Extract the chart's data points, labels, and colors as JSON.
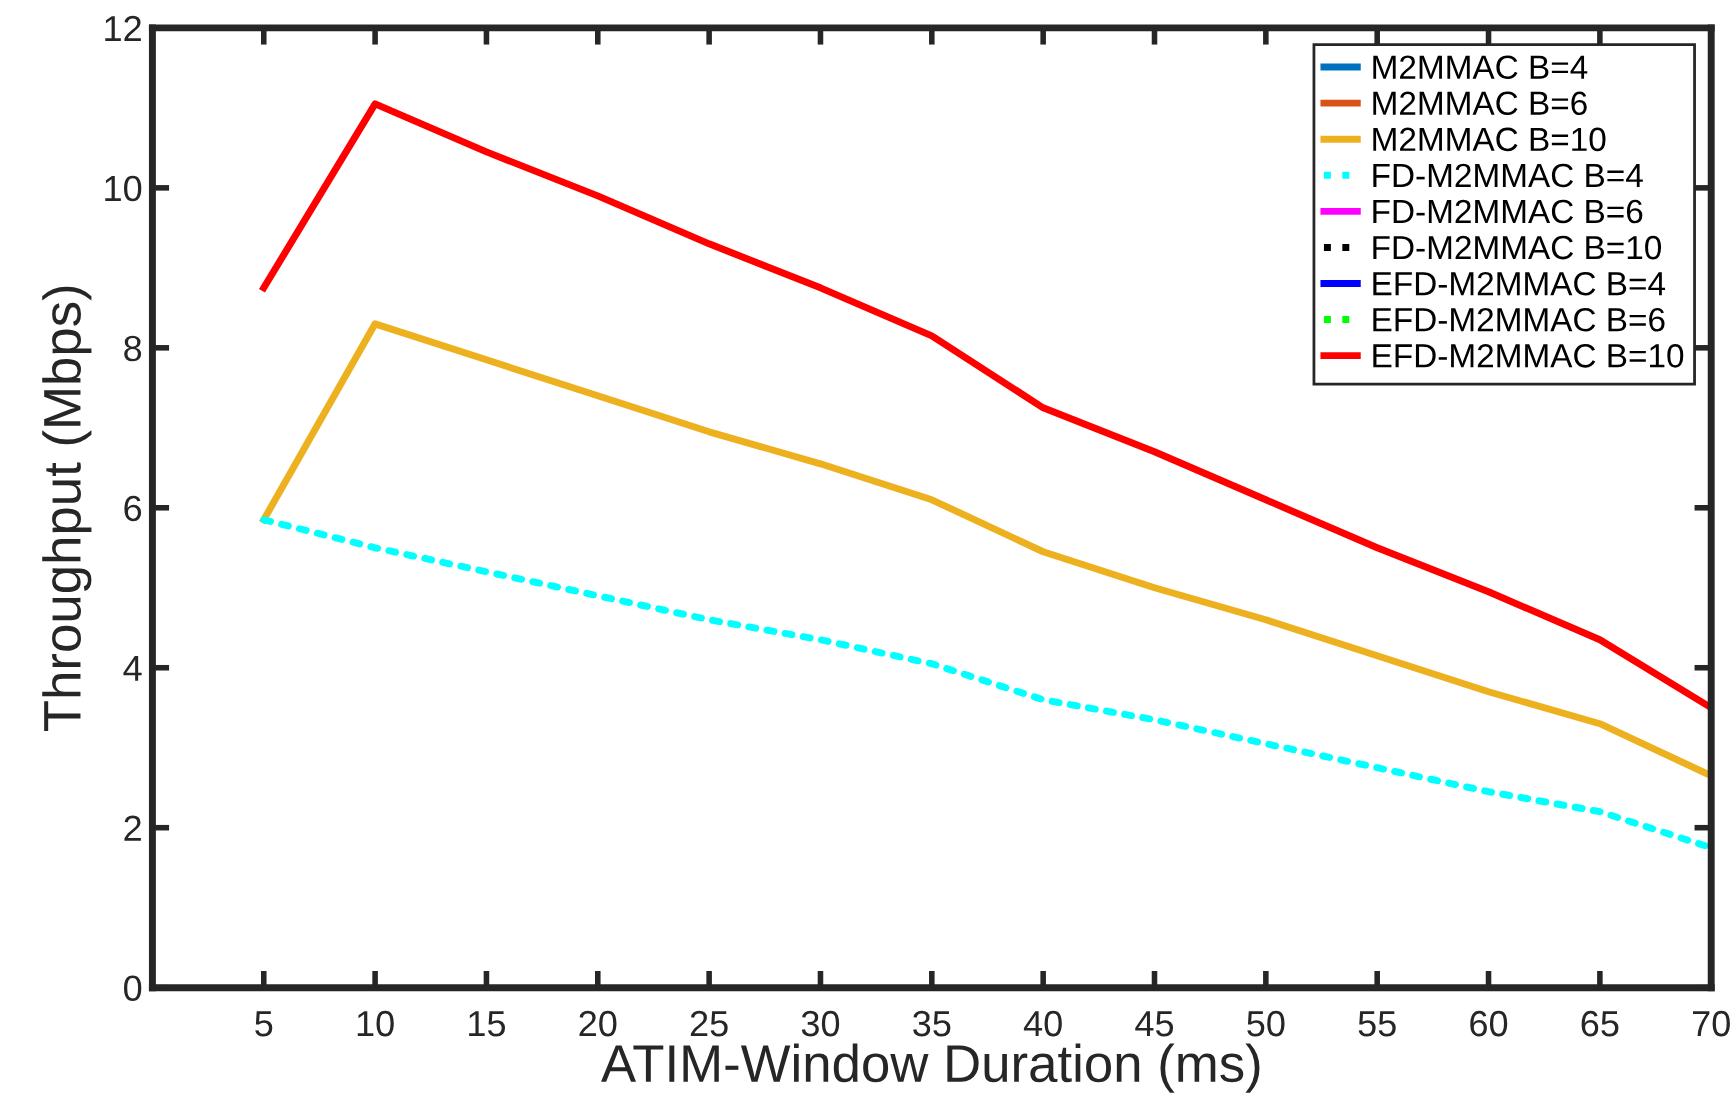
{
  "chart_data": {
    "type": "line",
    "xlabel": "ATIM-Window Duration (ms)",
    "ylabel": "Throughput (Mbps)",
    "x": [
      5,
      10,
      15,
      20,
      25,
      30,
      35,
      40,
      45,
      50,
      55,
      60,
      65,
      70
    ],
    "xlim": [
      0,
      70
    ],
    "xticks": [
      5,
      10,
      15,
      20,
      25,
      30,
      35,
      40,
      45,
      50,
      55,
      60,
      65,
      70
    ],
    "ylim": [
      0,
      12
    ],
    "yticks": [
      0,
      2,
      4,
      6,
      8,
      10,
      12
    ],
    "legend": "top right",
    "grid": false,
    "marker": "none",
    "series": [
      {
        "name": "M2MMAC B=4",
        "color": "#0072bd",
        "line_style": "solid",
        "values": [
          null,
          null,
          null,
          null,
          null,
          null,
          null,
          null,
          null,
          null,
          null,
          null,
          null,
          null
        ]
      },
      {
        "name": "M2MMAC B=6",
        "color": "#d95319",
        "line_style": "solid",
        "values": [
          null,
          null,
          null,
          null,
          null,
          null,
          null,
          null,
          null,
          null,
          null,
          null,
          null,
          null
        ]
      },
      {
        "name": "M2MMAC B=10",
        "color": "#edb120",
        "line_style": "solid",
        "values": [
          5.85,
          8.3,
          7.85,
          7.4,
          6.95,
          6.55,
          6.1,
          5.45,
          5.0,
          4.6,
          4.15,
          3.7,
          3.3,
          2.65
        ]
      },
      {
        "name": "FD-M2MMAC B=4",
        "color": "#00ffff",
        "line_style": "dotted",
        "values": [
          5.85,
          5.5,
          5.2,
          4.9,
          4.6,
          4.35,
          4.05,
          3.6,
          3.35,
          3.05,
          2.75,
          2.45,
          2.2,
          1.75
        ]
      },
      {
        "name": "FD-M2MMAC B=6",
        "color": "#ff00ff",
        "line_style": "solid",
        "values": [
          null,
          null,
          null,
          null,
          null,
          null,
          null,
          null,
          null,
          null,
          null,
          null,
          null,
          null
        ]
      },
      {
        "name": "FD-M2MMAC B=10",
        "color": "#000000",
        "line_style": "dotted",
        "values": [
          null,
          null,
          null,
          null,
          null,
          null,
          null,
          null,
          null,
          null,
          null,
          null,
          null,
          null
        ]
      },
      {
        "name": "EFD-M2MMAC B=4",
        "color": "#0000ff",
        "line_style": "solid",
        "values": [
          null,
          null,
          null,
          null,
          null,
          null,
          null,
          null,
          null,
          null,
          null,
          null,
          null,
          null
        ]
      },
      {
        "name": "EFD-M2MMAC B=6",
        "color": "#00ff00",
        "line_style": "dotted",
        "values": [
          null,
          null,
          null,
          null,
          null,
          null,
          null,
          null,
          null,
          null,
          null,
          null,
          null,
          null
        ]
      },
      {
        "name": "EFD-M2MMAC B=10",
        "color": "#ff0000",
        "line_style": "solid",
        "values": [
          8.75,
          11.05,
          10.45,
          9.9,
          9.3,
          8.75,
          8.15,
          7.25,
          6.7,
          6.1,
          5.5,
          4.95,
          4.35,
          3.5
        ]
      }
    ]
  }
}
